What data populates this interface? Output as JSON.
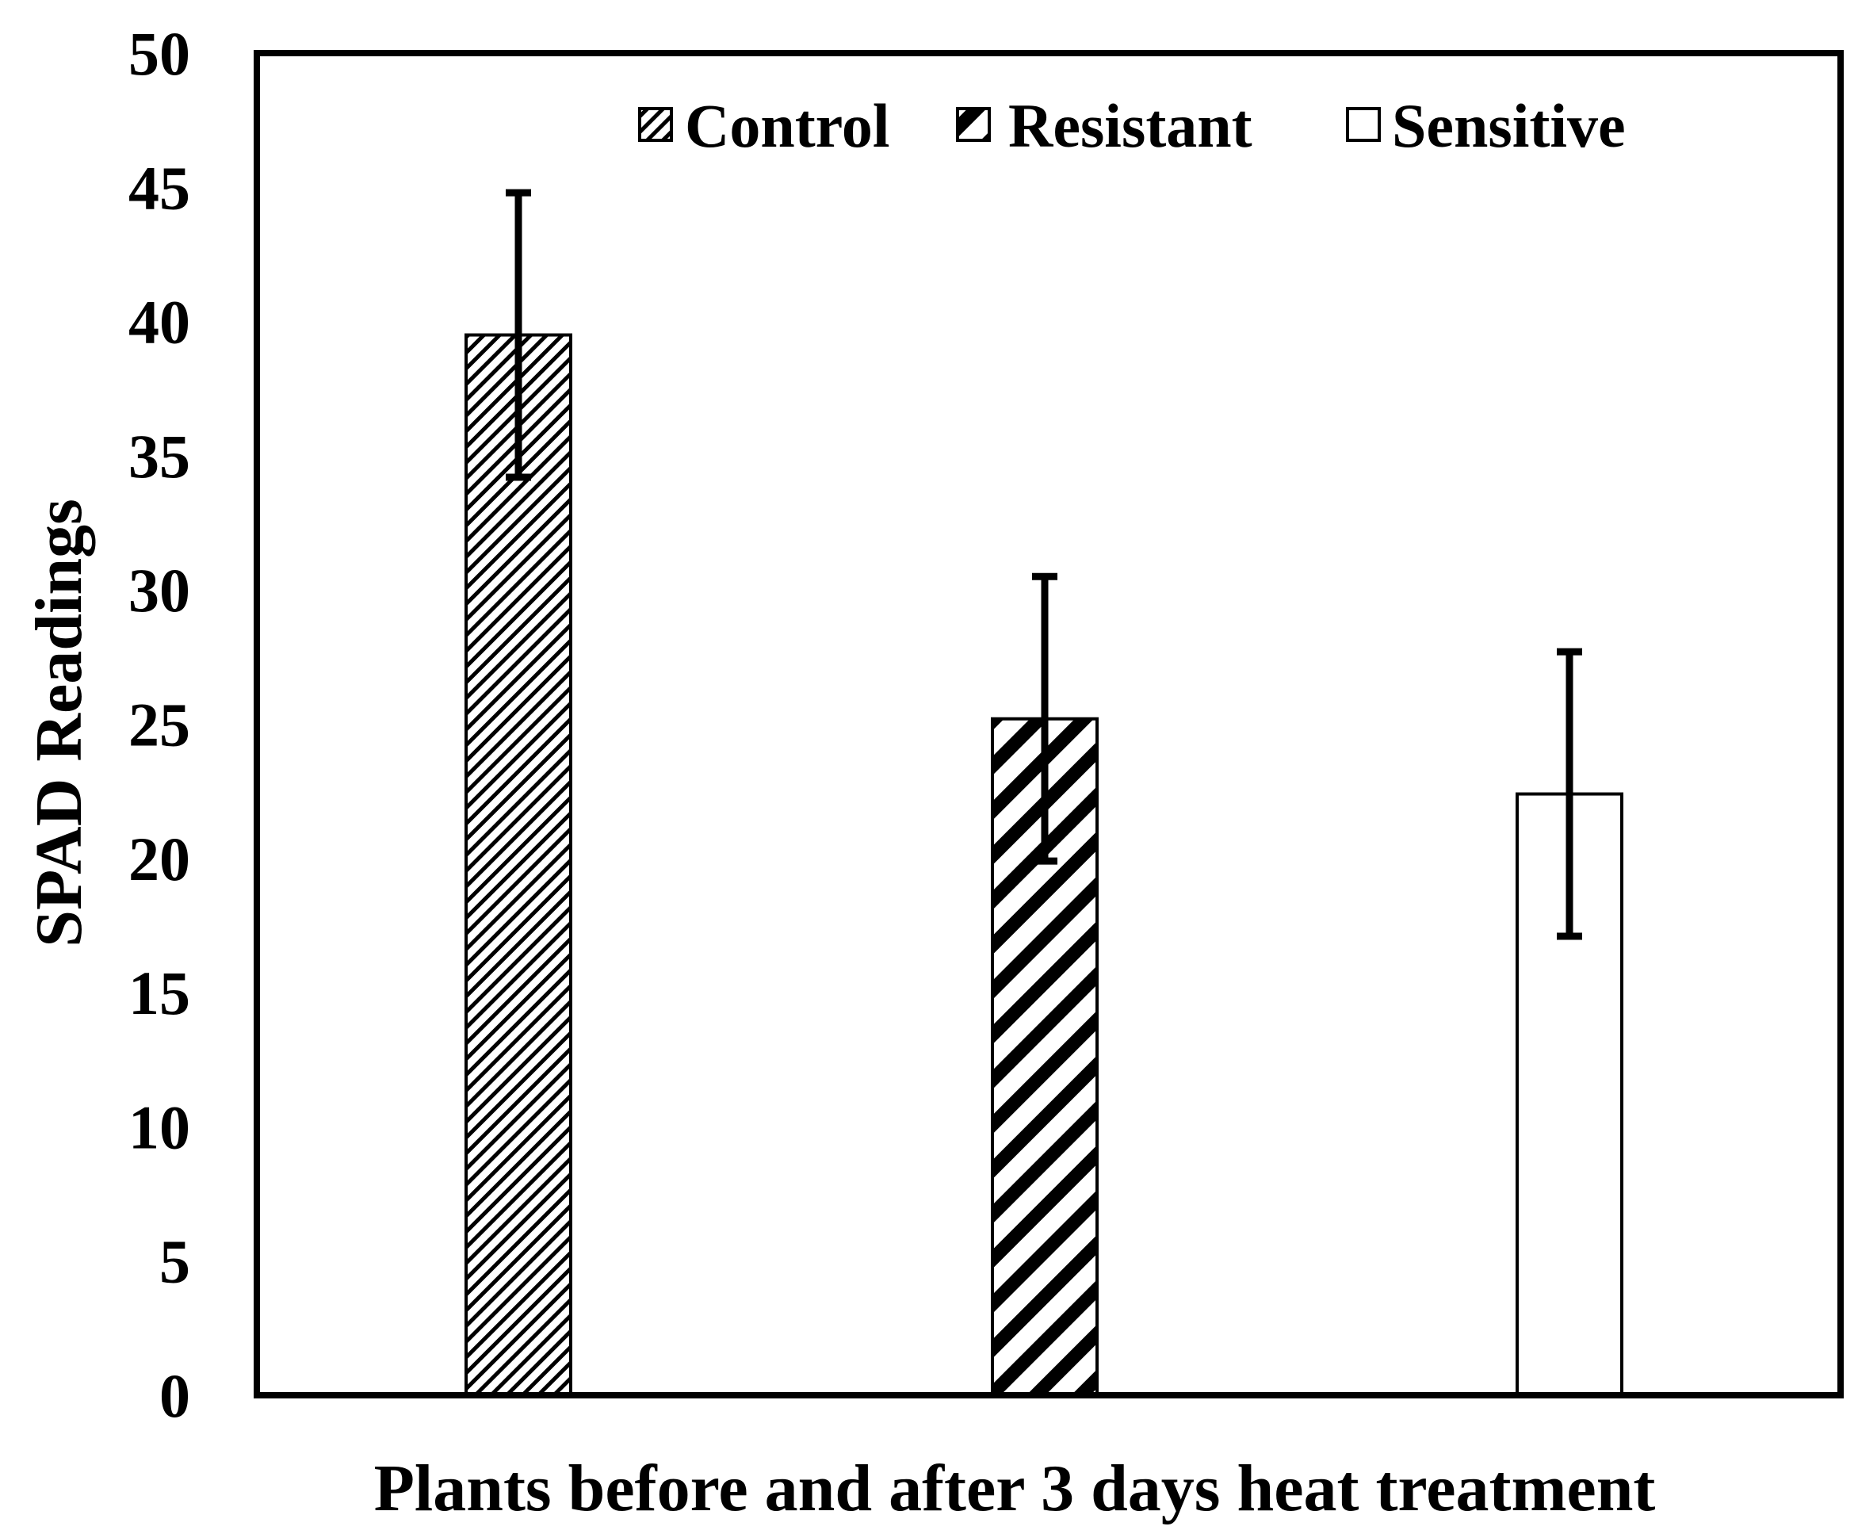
{
  "chart_data": {
    "type": "bar",
    "title": "",
    "xlabel": "Plants before and after 3 days heat treatment",
    "ylabel": "SPAD Readings",
    "ylim": [
      0,
      50
    ],
    "yticks": [
      "0",
      "5",
      "10",
      "15",
      "20",
      "25",
      "30",
      "35",
      "40",
      "45",
      "50"
    ],
    "grid": false,
    "legend_position": "top",
    "series": [
      {
        "name": "Control",
        "value": 39.5,
        "error": 5.3,
        "pattern": "fine-diagonal-hatch"
      },
      {
        "name": "Resistant",
        "value": 25.2,
        "error": 5.3,
        "pattern": "bold-diagonal-hatch"
      },
      {
        "name": "Sensitive",
        "value": 22.4,
        "error": 5.3,
        "pattern": "none"
      }
    ]
  },
  "colors": {
    "ink": "#000000",
    "background": "#ffffff"
  }
}
